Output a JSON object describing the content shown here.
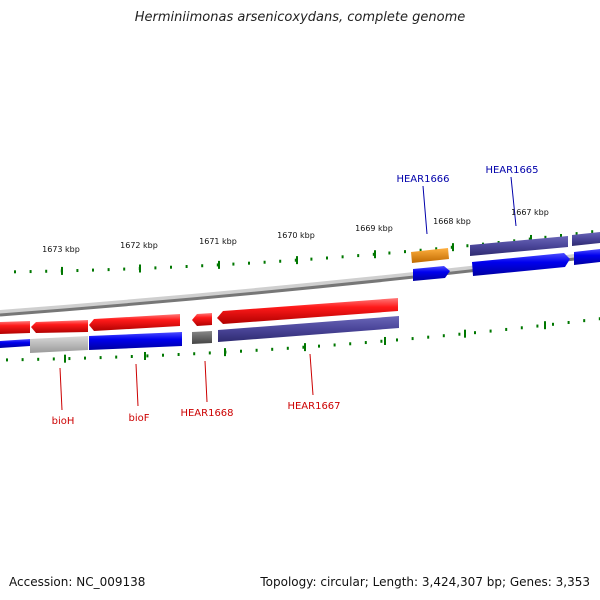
{
  "title": "Herminiimonas arsenicoxydans, complete genome",
  "footer": {
    "accession": "Accession: NC_009138",
    "topology": "Topology: circular; Length: 3,424,307 bp; Genes: 3,353"
  },
  "scale": {
    "upper_ticks": [
      "1673 kbp",
      "1672 kbp",
      "1671 kbp",
      "1670 kbp",
      "1669 kbp",
      "1668 kbp",
      "1667 kbp"
    ]
  },
  "gene_labels": {
    "top": [
      "HEAR1666",
      "HEAR1665"
    ],
    "bottom": [
      "bioH",
      "bioF",
      "HEAR1668",
      "HEAR1667"
    ]
  },
  "colors": {
    "label_blue": "#0000aa",
    "label_red": "#cc0000",
    "tick_green": "#007700",
    "gene_red": "#ff1a1a",
    "gene_blue": "#0000ee",
    "gene_slate": "#4a4599",
    "gene_orange": "#f08c00",
    "gene_gray": "#666666",
    "backbone": "#777777"
  }
}
